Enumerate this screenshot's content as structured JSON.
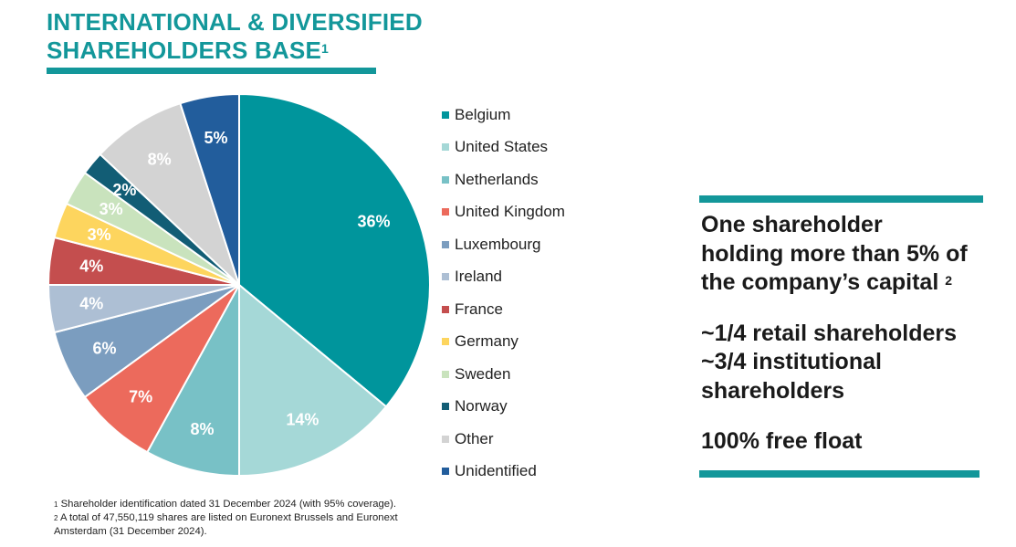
{
  "title": {
    "line1": "INTERNATIONAL & DIVERSIFIED",
    "line2": "SHAREHOLDERS BASE",
    "sup": "1"
  },
  "chart_data": {
    "type": "pie",
    "title": "",
    "categories": [
      "Belgium",
      "United States",
      "Netherlands",
      "United Kingdom",
      "Luxembourg",
      "Ireland",
      "France",
      "Germany",
      "Sweden",
      "Norway",
      "Other",
      "Unidentified"
    ],
    "values": [
      36,
      14,
      8,
      7,
      6,
      4,
      4,
      3,
      3,
      2,
      8,
      5
    ],
    "labels": [
      "36%",
      "14%",
      "8%",
      "7%",
      "6%",
      "4%",
      "4%",
      "3%",
      "3%",
      "2%",
      "8%",
      "5%"
    ],
    "colors": [
      "#00959c",
      "#a5d8d7",
      "#78c1c6",
      "#ec6a5c",
      "#7b9dbf",
      "#adbfd4",
      "#c44e4e",
      "#fdd55e",
      "#c9e3bd",
      "#125d75",
      "#d3d3d3",
      "#225d9c"
    ],
    "legend_position": "right"
  },
  "side": {
    "holding_l1": "One shareholder",
    "holding_l2": "holding more than 5% of",
    "holding_l3": "the company’s capital",
    "holding_sup": "2",
    "retail": "~1/4 retail shareholders",
    "inst_l1": "~3/4 institutional",
    "inst_l2": "shareholders",
    "free_float": "100% free float"
  },
  "footnotes": {
    "n1_sup": "1",
    "n1": "Shareholder identification dated 31 December 2024 (with 95% coverage).",
    "n2_sup": "2",
    "n2_l1": "A total of 47,550,119 shares are listed on Euronext Brussels and Euronext",
    "n2_l2": "Amsterdam (31 December 2024)."
  }
}
